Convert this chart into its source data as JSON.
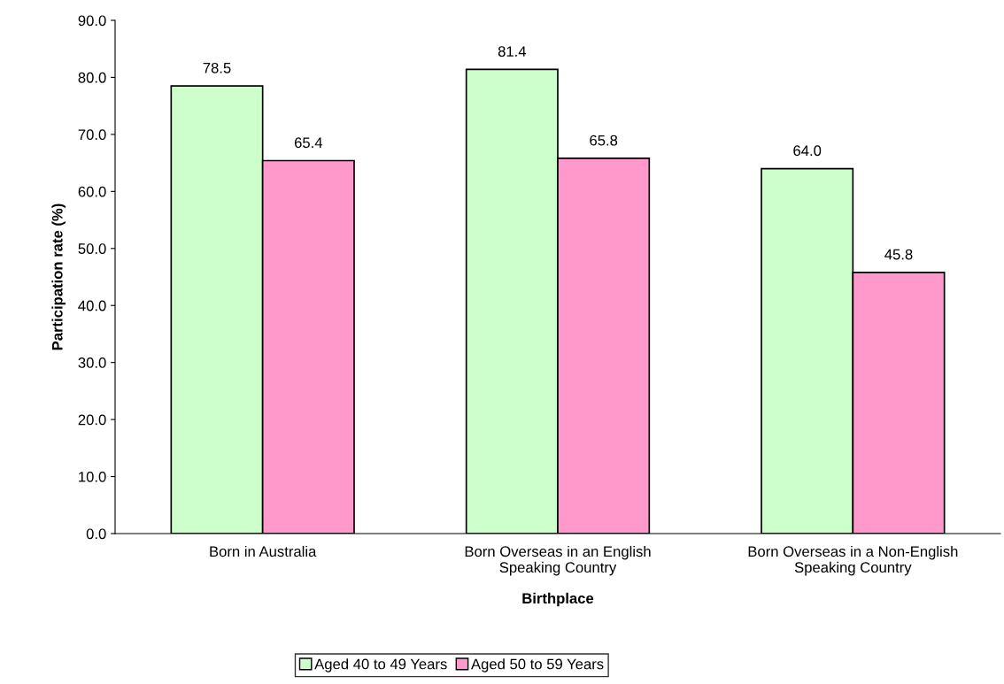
{
  "chart_data": {
    "type": "bar",
    "xlabel": "Birthplace",
    "ylabel": "Participation rate (%)",
    "categories": [
      "Born in Australia",
      "Born Overseas in an English\nSpeaking Country",
      "Born Overseas in a Non-English\nSpeaking Country"
    ],
    "series": [
      {
        "name": "Aged 40 to 49 Years",
        "color": "#ccffcc",
        "values": [
          78.5,
          81.4,
          64.0
        ],
        "value_labels": [
          "78.5",
          "81.4",
          "64.0"
        ]
      },
      {
        "name": "Aged 50 to 59 Years",
        "color": "#ff99cc",
        "values": [
          65.4,
          65.8,
          45.8
        ],
        "value_labels": [
          "65.4",
          "65.8",
          "45.8"
        ]
      }
    ],
    "ylim": [
      0,
      90
    ],
    "yticks": [
      {
        "value": 0,
        "label": "0.0"
      },
      {
        "value": 10,
        "label": "10.0"
      },
      {
        "value": 20,
        "label": "20.0"
      },
      {
        "value": 30,
        "label": "30.0"
      },
      {
        "value": 40,
        "label": "40.0"
      },
      {
        "value": 50,
        "label": "50.0"
      },
      {
        "value": 60,
        "label": "60.0"
      },
      {
        "value": 70,
        "label": "70.0"
      },
      {
        "value": 80,
        "label": "80.0"
      },
      {
        "value": 90,
        "label": "90.0"
      }
    ],
    "grid": false,
    "legend": "bottom"
  }
}
